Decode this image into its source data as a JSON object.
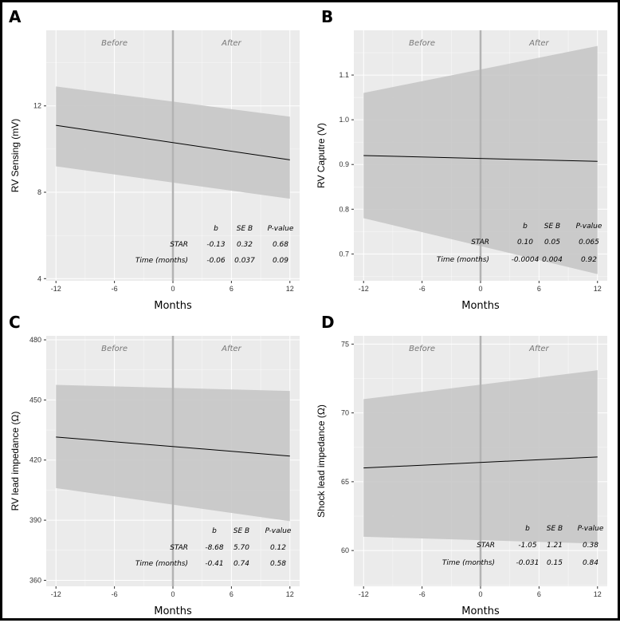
{
  "chart_data": [
    {
      "type": "line",
      "panel": "A",
      "xlabel": "Months",
      "ylabel": "RV Sensing (mV)",
      "xlim": [
        -13,
        13
      ],
      "ylim": [
        3.9,
        15.5
      ],
      "xticks": [
        -12,
        -6,
        0,
        6,
        12
      ],
      "yticks": [
        4,
        8,
        12
      ],
      "period_labels": [
        "Before",
        "After"
      ],
      "intervention_x": 0,
      "x": [
        -12,
        12
      ],
      "line": [
        11.1,
        9.5
      ],
      "band_lower": [
        9.2,
        7.7
      ],
      "band_upper": [
        12.9,
        11.5
      ],
      "table": {
        "headers": [
          "b",
          "SE B",
          "P-value"
        ],
        "rows": [
          {
            "label": "STAR",
            "cells": [
              "-0.13",
              "0.32",
              "0.68"
            ]
          },
          {
            "label": "Time (months)",
            "cells": [
              "-0.06",
              "0.037",
              "0.09"
            ]
          }
        ]
      }
    },
    {
      "type": "line",
      "panel": "B",
      "xlabel": "Months",
      "ylabel": "RV Caputre (V)",
      "xlim": [
        -13,
        13
      ],
      "ylim": [
        0.64,
        1.2
      ],
      "xticks": [
        -12,
        -6,
        0,
        6,
        12
      ],
      "yticks": [
        0.7,
        0.8,
        0.9,
        1.0,
        1.1
      ],
      "ytick_labels": [
        "0.7",
        "0.8",
        "0.9",
        "1.0",
        "1.1"
      ],
      "period_labels": [
        "Before",
        "After"
      ],
      "intervention_x": 0,
      "x": [
        -12,
        12
      ],
      "line": [
        0.92,
        0.907
      ],
      "band_lower": [
        0.78,
        0.655
      ],
      "band_upper": [
        1.06,
        1.165
      ],
      "table": {
        "headers": [
          "b",
          "SE B",
          "P-value"
        ],
        "rows": [
          {
            "label": "STAR",
            "cells": [
              "0.10",
              "0.05",
              "0.065"
            ]
          },
          {
            "label": "Time (months)",
            "cells": [
              "-0.0004",
              "0.004",
              "0.92"
            ]
          }
        ]
      }
    },
    {
      "type": "line",
      "panel": "C",
      "xlabel": "Months",
      "ylabel": "RV lead impedance (Ω)",
      "xlim": [
        -13,
        13
      ],
      "ylim": [
        357,
        482
      ],
      "xticks": [
        -12,
        -6,
        0,
        6,
        12
      ],
      "yticks": [
        360,
        390,
        420,
        450,
        480
      ],
      "period_labels": [
        "Before",
        "After"
      ],
      "intervention_x": 0,
      "x": [
        -12,
        12
      ],
      "line": [
        431.5,
        422
      ],
      "band_lower": [
        406,
        389.5
      ],
      "band_upper": [
        457.5,
        454.5
      ],
      "table": {
        "headers": [
          "b",
          "SE B",
          "P-value"
        ],
        "rows": [
          {
            "label": "STAR",
            "cells": [
              "-8.68",
              "5.70",
              "0.12"
            ]
          },
          {
            "label": "Time (months)",
            "cells": [
              "-0.41",
              "0.74",
              "0.58"
            ]
          }
        ]
      }
    },
    {
      "type": "line",
      "panel": "D",
      "xlabel": "Months",
      "ylabel": "Shock lead impedance (Ω)",
      "xlim": [
        -13,
        13
      ],
      "ylim": [
        57.4,
        75.6
      ],
      "xticks": [
        -12,
        -6,
        0,
        6,
        12
      ],
      "yticks": [
        60,
        65,
        70,
        75
      ],
      "period_labels": [
        "Before",
        "After"
      ],
      "intervention_x": 0,
      "x": [
        -12,
        12
      ],
      "line": [
        66.0,
        66.8
      ],
      "band_lower": [
        61.0,
        60.5
      ],
      "band_upper": [
        71.0,
        73.1
      ],
      "table": {
        "headers": [
          "b",
          "SE B",
          "P-value"
        ],
        "rows": [
          {
            "label": "STAR",
            "cells": [
              "-1.05",
              "1.21",
              "0.38"
            ]
          },
          {
            "label": "Time (months)",
            "cells": [
              "-0.031",
              "0.15",
              "0.84"
            ]
          }
        ]
      }
    }
  ],
  "colors": {
    "panel_background": "#ebebeb",
    "grid": "#ffffff",
    "ribbon": "#c6c6c6",
    "line": "#000000",
    "intervention_line": "#b3b3b3",
    "period_label": "#777777"
  }
}
